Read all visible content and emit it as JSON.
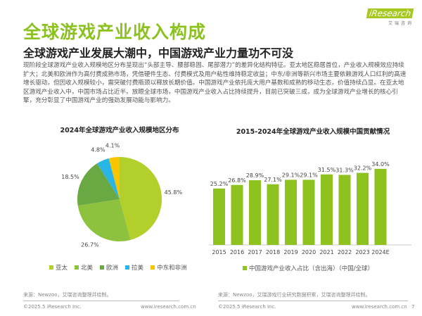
{
  "header": {
    "title": "全球游戏产业收入构成",
    "subtitle": "全球游戏产业发展大潮中，中国游戏产业力量功不可没",
    "logo": {
      "brand": "iResearch",
      "sub": "艾瑞咨询"
    },
    "paragraph": "现阶段全球游戏产业收入规模地区分布呈现出“头部主导、腰部稳固、尾部潜力”的差异化结构特征。亚太地区稳居首位，产业收入规模效应持续扩大；北美和欧洲作为高付费成熟市场，凭借硬件生态、付费模式及用户粘性维持稳定收益；中东/非洲等新兴市场主要依赖游戏人口红利的高速增长驱动，但因收入规模较小，需突破付费瓶颈以释放长期价值。中国游戏产业依托庞大用户基数和成熟的移动生态，价值持续凸显。在亚太地区游戏产业收入中，中国市场占比近半。放眼全球市场，中国游戏产业收入占比持续提升，目前已突破三成，成为全球游戏产业增长的核心引擎，充分彰显了中国游戏产业的强劲发展动能与影响力。"
  },
  "chart_data": [
    {
      "type": "pie",
      "title": "2024年全球游戏产业收入规模地区分布",
      "categories": [
        "亚太",
        "北美",
        "欧洲",
        "拉美",
        "中东和非洲"
      ],
      "values": [
        45.8,
        26.7,
        18.5,
        4.8,
        4.1
      ],
      "labels": [
        "45.8%",
        "26.7%",
        "18.5%",
        "4.8%",
        "4.1%"
      ],
      "colors": [
        "#b3cf2b",
        "#8dc23f",
        "#6aa843",
        "#29b6e6",
        "#f7c600"
      ],
      "legend": "bottom"
    },
    {
      "type": "bar",
      "title": "2015-2024年全球游戏产业收入规模中国贡献情况",
      "categories": [
        "2015",
        "2016",
        "2017",
        "2018",
        "2019",
        "2020",
        "2021",
        "2022",
        "2023",
        "2024E"
      ],
      "values": [
        25.2,
        26.8,
        28.9,
        27.1,
        29.1,
        29.1,
        31.5,
        31.3,
        32.2,
        34.0
      ],
      "labels": [
        "25.2%",
        "26.8%",
        "28.9%",
        "27.1%",
        "29.1%",
        "29.1%",
        "31.5%",
        "31.3%",
        "32.2%",
        "34.0%"
      ],
      "series_name": "中国游戏产业收入占比（含出海）（中国/全球）",
      "color": "#8dc21f",
      "ylim": [
        0,
        40
      ],
      "legend": "bottom"
    }
  ],
  "footer": {
    "left_source": "来源：Newzoo，艾瑞咨询整理并绘制。",
    "right_source": "来源：Newzoo，艾瑞游戏行业研究数据积累，艾瑞咨询整理并绘制。",
    "copyright": "©2025.5 iResearch Inc.",
    "url": "www.iresearch.com.cn",
    "page": "7"
  }
}
